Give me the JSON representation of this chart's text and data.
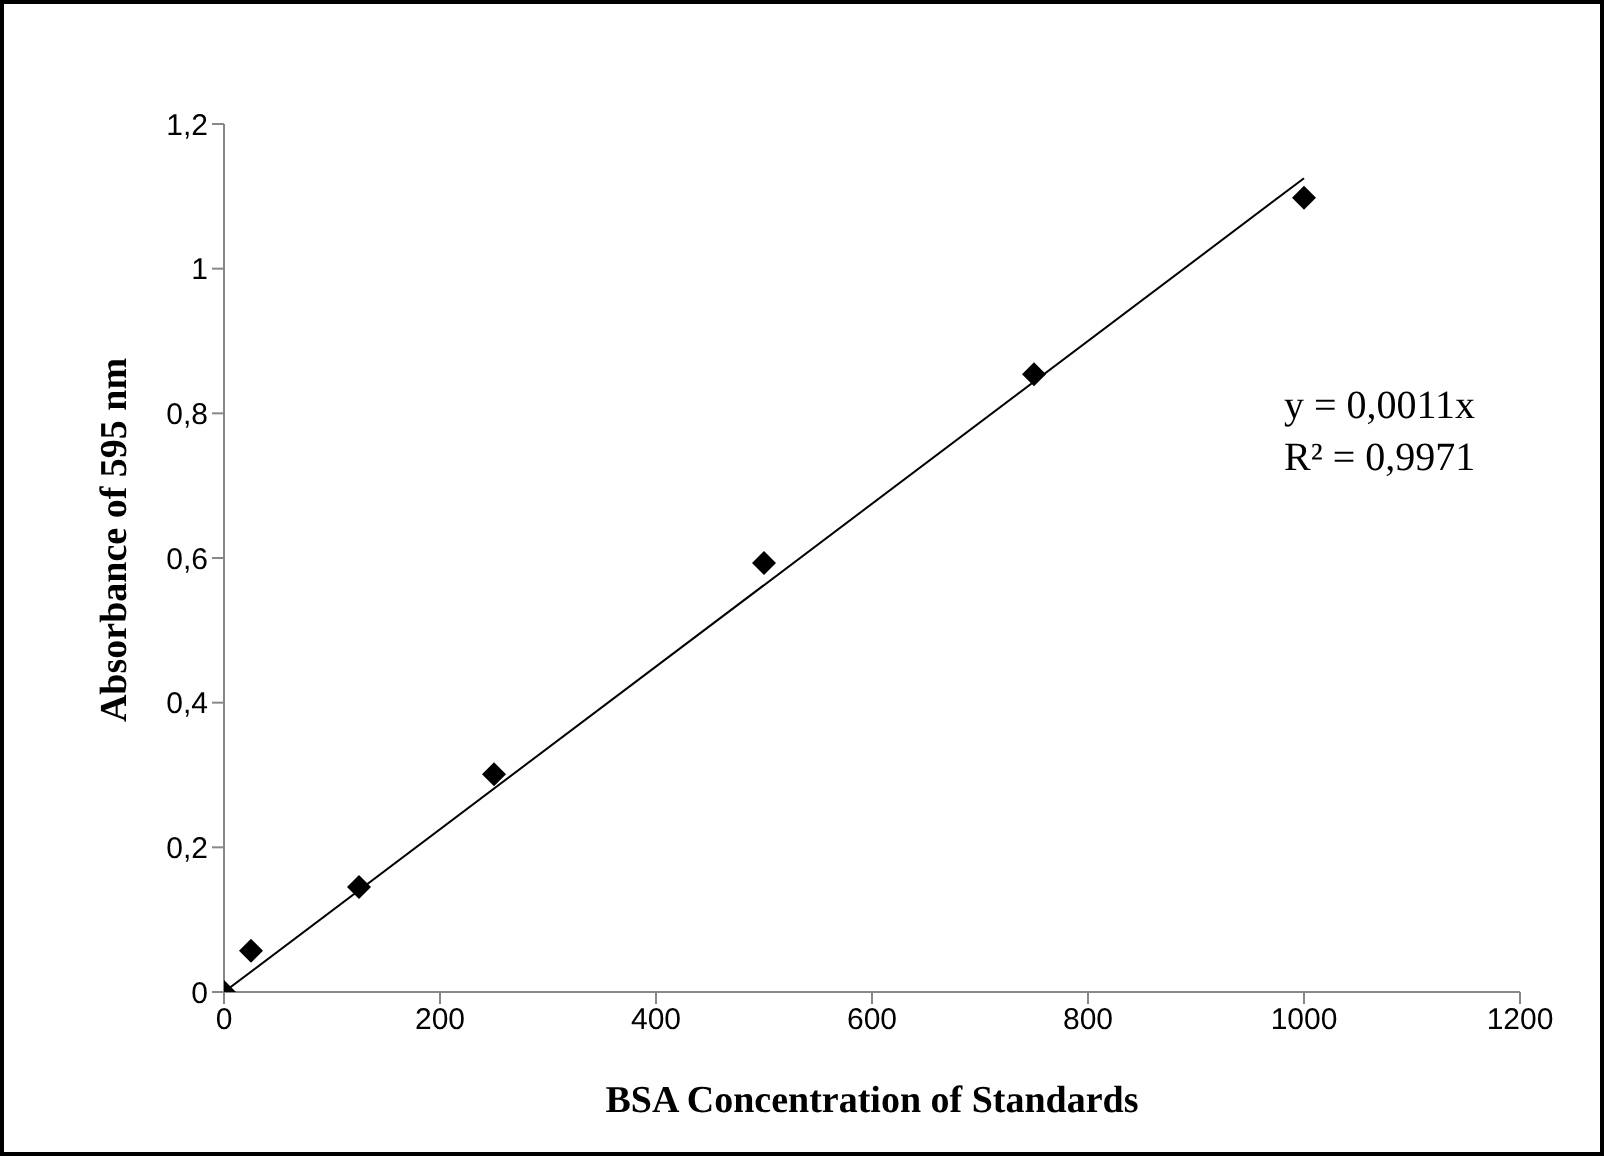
{
  "chart_data": {
    "type": "scatter",
    "xlabel": "BSA Concentration of Standards",
    "ylabel": "Absorbance of 595 nm",
    "xlim": [
      0,
      1200
    ],
    "xticks": [
      0,
      200,
      400,
      600,
      800,
      1000,
      1200
    ],
    "ylim": [
      0,
      1.2
    ],
    "yticks": [
      0,
      {
        "value": 0.2,
        "label": "0,2"
      },
      {
        "value": 0.4,
        "label": "0,4"
      },
      {
        "value": 0.6,
        "label": "0,6"
      },
      {
        "value": 0.8,
        "label": "0,8"
      },
      1,
      {
        "value": 1.2,
        "label": "1,2"
      }
    ],
    "grid": false,
    "marker": "diamond",
    "series": [
      {
        "type": "scatter",
        "color": "#000000",
        "x": [
          0,
          25,
          125,
          250,
          500,
          750,
          1000
        ],
        "values": [
          0,
          0.057,
          0.145,
          0.301,
          0.593,
          0.854,
          1.098
        ]
      },
      {
        "type": "line",
        "color": "#000000",
        "marker": "none",
        "x": [
          0,
          1000
        ],
        "values": [
          0,
          1.125
        ]
      }
    ],
    "annotations": [
      "y = 0,0011x",
      "R² = 0,9971"
    ]
  }
}
